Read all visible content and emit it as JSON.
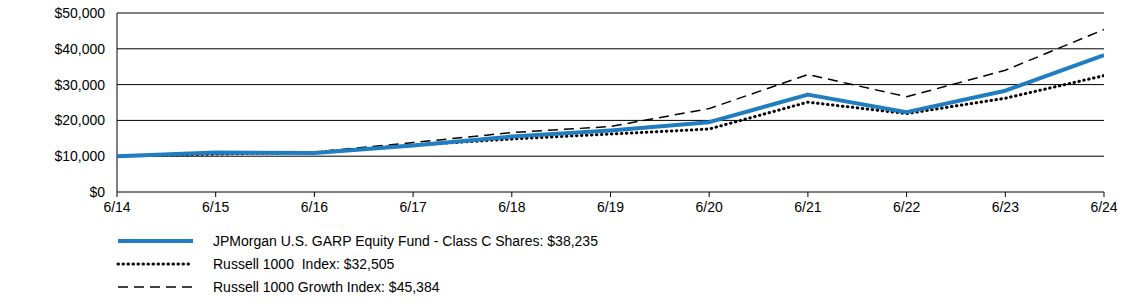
{
  "chart_data": {
    "type": "line",
    "x": [
      "6/14",
      "6/15",
      "6/16",
      "6/17",
      "6/18",
      "6/19",
      "6/20",
      "6/21",
      "6/22",
      "6/23",
      "6/24"
    ],
    "ylim": [
      0,
      50000
    ],
    "yticks": [
      {
        "value": 0,
        "label": "$0"
      },
      {
        "value": 10000,
        "label": "$10,000"
      },
      {
        "value": 20000,
        "label": "$20,000"
      },
      {
        "value": 30000,
        "label": "$30,000"
      },
      {
        "value": 40000,
        "label": "$40,000"
      },
      {
        "value": 50000,
        "label": "$50,000"
      }
    ],
    "grid": true,
    "legend": "bottom-left",
    "series": [
      {
        "name": "JPMorgan U.S. GARP Equity Fund - Class C Shares: $38,235",
        "color": "#1f7dc0",
        "line_style": "solid",
        "values": [
          10000,
          11000,
          10900,
          13000,
          15500,
          17200,
          19500,
          27200,
          22300,
          28300,
          38235
        ]
      },
      {
        "name": "Russell 1000  Index: $32,505",
        "color": "#000000",
        "line_style": "dotted",
        "values": [
          10000,
          10600,
          11000,
          13100,
          14800,
          16200,
          17600,
          25100,
          21900,
          26200,
          32505
        ]
      },
      {
        "name": "Russell 1000 Growth Index: $45,384",
        "color": "#000000",
        "line_style": "dashed",
        "values": [
          10000,
          10700,
          11200,
          13800,
          16600,
          18300,
          23300,
          32800,
          26600,
          34000,
          45384
        ]
      }
    ]
  }
}
